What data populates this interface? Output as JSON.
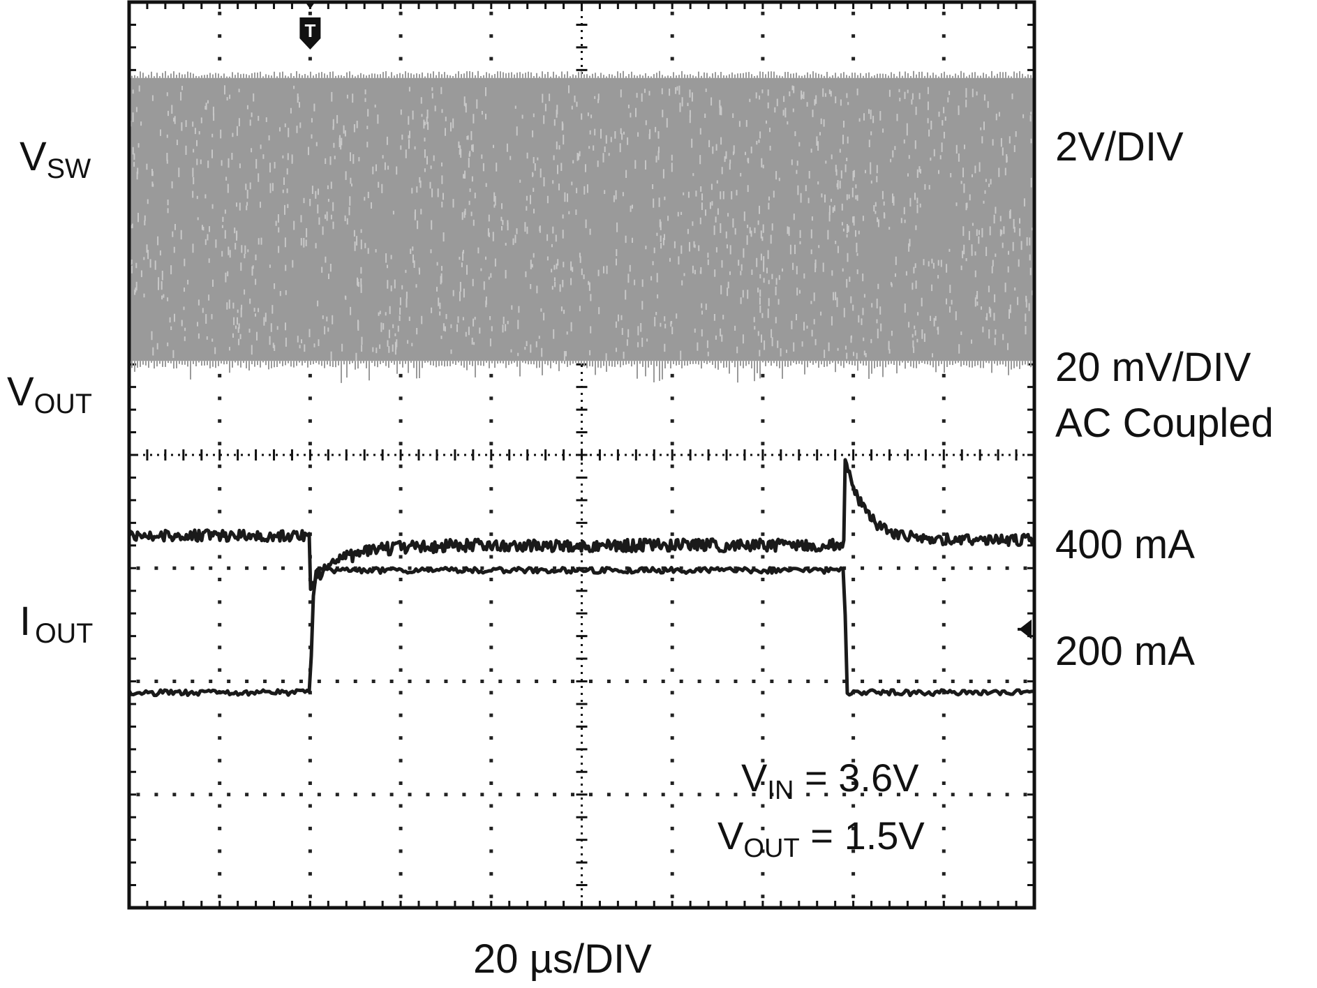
{
  "chart_data": {
    "type": "line",
    "title": "",
    "xlabel": "",
    "ylabel": "",
    "timebase": "20 µs/DIV",
    "grid": true,
    "divisions": {
      "x": 10,
      "y": 8
    },
    "trigger_marker": "T",
    "trigger_time_div": 2,
    "channels": [
      {
        "name": "V",
        "name_sub": "SW",
        "scale": "2V/DIV",
        "scale_note": "",
        "color": "#9a9a9a",
        "kind": "switching-band"
      },
      {
        "name": "V",
        "name_sub": "OUT",
        "scale": "20 mV/DIV",
        "scale_note": "AC Coupled",
        "color": "#1a1a1a",
        "kind": "transient"
      },
      {
        "name": "I",
        "name_sub": "OUT",
        "scale_levels": [
          "400 mA",
          "200 mA"
        ],
        "color": "#1a1a1a",
        "kind": "load-step"
      }
    ],
    "load_step": {
      "low": "200 mA",
      "high": "400 mA",
      "step_up_div": 2,
      "step_down_div": 7.9
    },
    "conditions": [
      {
        "name": "V",
        "sub": "IN",
        "value": " = 3.6V"
      },
      {
        "name": "V",
        "sub": "OUT",
        "value": " = 1.5V"
      }
    ]
  }
}
